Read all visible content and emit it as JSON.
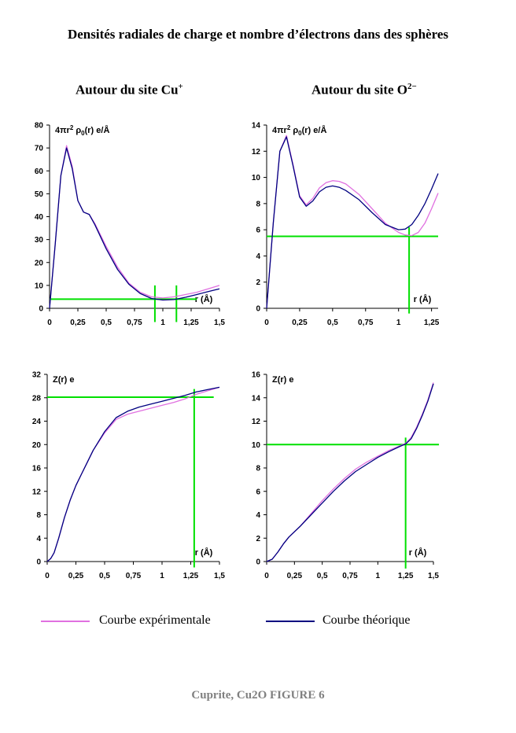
{
  "page": {
    "title": "Densités radiales de charge et nombre d’électrons dans des sphères",
    "subtitle_cu_text": "Autour du site Cu",
    "subtitle_cu_sup": "+",
    "subtitle_o_text": "Autour du site O",
    "subtitle_o_sup": "2−",
    "caption": "Cuprite, Cu2O FIGURE 6"
  },
  "legend": {
    "experimental": "Courbe expérimentale",
    "theoretical": "Courbe théorique"
  },
  "colors": {
    "experimental": "#e070e0",
    "theoretical": "#000080",
    "guide": "#00e000",
    "axis": "#000000"
  },
  "chart_data": [
    {
      "type": "line",
      "ylabel_main": "4πr",
      "ylabel_sup": "2",
      "ylabel_rho": " ρ",
      "ylabel_sub": "0",
      "ylabel_tail": "(r) e/Å",
      "xlabel": "r (Å)",
      "xlim": [
        0,
        1.5
      ],
      "ylim": [
        0,
        80
      ],
      "xticks": [
        0,
        0.25,
        0.5,
        0.75,
        1,
        1.25,
        1.5
      ],
      "xtick_labels": [
        "0",
        "0,25",
        "0,5",
        "0,75",
        "1",
        "1,25",
        "1,5"
      ],
      "yticks": [
        0,
        10,
        20,
        30,
        40,
        50,
        60,
        70,
        80
      ],
      "ytick_labels": [
        "0",
        "10",
        "20",
        "30",
        "40",
        "50",
        "60",
        "70",
        "80"
      ],
      "series": [
        {
          "key": "experimental",
          "x": [
            0,
            0.05,
            0.1,
            0.15,
            0.2,
            0.25,
            0.3,
            0.35,
            0.4,
            0.5,
            0.6,
            0.7,
            0.8,
            0.9,
            1.0,
            1.1,
            1.2,
            1.3,
            1.4,
            1.5
          ],
          "y": [
            0,
            28,
            58,
            71,
            62,
            47,
            42,
            41,
            37,
            27,
            18,
            11,
            7,
            5,
            4.5,
            5,
            6,
            7,
            8.5,
            10
          ]
        },
        {
          "key": "theoretical",
          "x": [
            0,
            0.05,
            0.1,
            0.15,
            0.2,
            0.25,
            0.3,
            0.35,
            0.4,
            0.5,
            0.6,
            0.7,
            0.8,
            0.9,
            1.0,
            1.1,
            1.2,
            1.3,
            1.4,
            1.5
          ],
          "y": [
            0,
            28,
            58,
            70,
            61,
            47,
            42,
            41,
            36.5,
            26,
            17,
            10.5,
            6.5,
            4.3,
            3.6,
            3.8,
            4.8,
            6,
            7.3,
            8.5
          ]
        }
      ],
      "guides": {
        "hline": 4,
        "hline_x": [
          0,
          1.3
        ],
        "vlines": [
          0.93,
          1.12
        ],
        "vline_y": [
          -6,
          10
        ]
      }
    },
    {
      "type": "line",
      "ylabel_main": "4πr",
      "ylabel_sup": "2",
      "ylabel_rho": " ρ",
      "ylabel_sub": "0",
      "ylabel_tail": "(r) e/Å",
      "xlabel": "r (Å)",
      "xlim": [
        0,
        1.3
      ],
      "ylim": [
        0,
        14
      ],
      "xticks": [
        0,
        0.25,
        0.5,
        0.75,
        1,
        1.25
      ],
      "xtick_labels": [
        "0",
        "0,25",
        "0,5",
        "0,75",
        "1",
        "1,25"
      ],
      "yticks": [
        0,
        2,
        4,
        6,
        8,
        10,
        12,
        14
      ],
      "ytick_labels": [
        "0",
        "2",
        "4",
        "6",
        "8",
        "10",
        "12",
        "14"
      ],
      "series": [
        {
          "key": "experimental",
          "x": [
            0,
            0.05,
            0.1,
            0.15,
            0.2,
            0.25,
            0.3,
            0.35,
            0.4,
            0.45,
            0.5,
            0.55,
            0.6,
            0.7,
            0.8,
            0.9,
            1.0,
            1.05,
            1.1,
            1.15,
            1.2,
            1.25,
            1.3
          ],
          "y": [
            0,
            6.5,
            12,
            13.2,
            11,
            8.6,
            7.9,
            8.4,
            9.2,
            9.6,
            9.75,
            9.7,
            9.5,
            8.7,
            7.6,
            6.5,
            5.8,
            5.6,
            5.55,
            5.8,
            6.5,
            7.6,
            8.8
          ]
        },
        {
          "key": "theoretical",
          "x": [
            0,
            0.05,
            0.1,
            0.15,
            0.2,
            0.25,
            0.3,
            0.35,
            0.4,
            0.45,
            0.5,
            0.55,
            0.6,
            0.7,
            0.8,
            0.9,
            1.0,
            1.05,
            1.1,
            1.15,
            1.2,
            1.25,
            1.3
          ],
          "y": [
            0,
            6.5,
            12,
            13.1,
            10.9,
            8.5,
            7.8,
            8.2,
            8.9,
            9.25,
            9.35,
            9.25,
            9.0,
            8.3,
            7.3,
            6.4,
            6.0,
            6.05,
            6.4,
            7.1,
            8.0,
            9.1,
            10.3
          ]
        }
      ],
      "guides": {
        "hline": 5.5,
        "hline_x": [
          0,
          1.3
        ],
        "vlines": [
          1.08
        ],
        "vline_y": [
          -0.4,
          6.2
        ]
      }
    },
    {
      "type": "line",
      "ylabel_main": "Z(r) e",
      "xlabel": "r (Å)",
      "xlim": [
        0,
        1.5
      ],
      "ylim": [
        0,
        32
      ],
      "xticks": [
        0,
        0.25,
        0.5,
        0.75,
        1,
        1.25,
        1.5
      ],
      "xtick_labels": [
        "0",
        "0,25",
        "0,5",
        "0,75",
        "1",
        "1,25",
        "1,5"
      ],
      "yticks": [
        0,
        4,
        8,
        12,
        16,
        20,
        24,
        28,
        32
      ],
      "ytick_labels": [
        "0",
        "4",
        "8",
        "12",
        "16",
        "20",
        "24",
        "28",
        "32"
      ],
      "series": [
        {
          "key": "experimental",
          "x": [
            0,
            0.03,
            0.06,
            0.1,
            0.15,
            0.2,
            0.25,
            0.3,
            0.35,
            0.4,
            0.5,
            0.6,
            0.7,
            0.8,
            0.9,
            1.0,
            1.1,
            1.2,
            1.3,
            1.4,
            1.5
          ],
          "y": [
            0,
            0.5,
            1.5,
            4,
            7.5,
            10.5,
            13,
            15,
            17,
            19,
            22,
            24.3,
            25.2,
            25.7,
            26.2,
            26.7,
            27.2,
            27.8,
            28.6,
            29.2,
            29.8
          ]
        },
        {
          "key": "theoretical",
          "x": [
            0,
            0.03,
            0.06,
            0.1,
            0.15,
            0.2,
            0.25,
            0.3,
            0.35,
            0.4,
            0.5,
            0.6,
            0.7,
            0.8,
            0.9,
            1.0,
            1.1,
            1.2,
            1.3,
            1.4,
            1.5
          ],
          "y": [
            0,
            0.5,
            1.5,
            4,
            7.5,
            10.5,
            13,
            15,
            17,
            19,
            22.2,
            24.6,
            25.7,
            26.4,
            26.9,
            27.4,
            27.9,
            28.4,
            29,
            29.4,
            29.8
          ]
        }
      ],
      "guides": {
        "hline": 28.1,
        "hline_x": [
          0,
          1.45
        ],
        "vlines": [
          1.28
        ],
        "vline_y": [
          -1,
          29.5
        ]
      }
    },
    {
      "type": "line",
      "ylabel_main": "Z(r) e",
      "xlabel": "r (Å)",
      "xlim": [
        0,
        1.5
      ],
      "ylim": [
        0,
        16
      ],
      "xticks": [
        0,
        0.25,
        0.5,
        0.75,
        1,
        1.25,
        1.5
      ],
      "xtick_labels": [
        "0",
        "0,25",
        "0,5",
        "0,75",
        "1",
        "1,25",
        "1,5"
      ],
      "yticks": [
        0,
        2,
        4,
        6,
        8,
        10,
        12,
        14,
        16
      ],
      "ytick_labels": [
        "0",
        "2",
        "4",
        "6",
        "8",
        "10",
        "12",
        "14",
        "16"
      ],
      "series": [
        {
          "key": "experimental",
          "x": [
            0,
            0.05,
            0.1,
            0.15,
            0.2,
            0.3,
            0.4,
            0.5,
            0.6,
            0.7,
            0.8,
            0.9,
            1.0,
            1.1,
            1.2,
            1.25,
            1.3,
            1.35,
            1.4,
            1.45,
            1.5
          ],
          "y": [
            0,
            0.2,
            0.8,
            1.5,
            2.1,
            3.0,
            4.1,
            5.2,
            6.2,
            7.1,
            7.9,
            8.5,
            9.0,
            9.5,
            9.9,
            10.1,
            10.6,
            11.5,
            12.6,
            13.8,
            15.3
          ]
        },
        {
          "key": "theoretical",
          "x": [
            0,
            0.05,
            0.1,
            0.15,
            0.2,
            0.3,
            0.4,
            0.5,
            0.6,
            0.7,
            0.8,
            0.9,
            1.0,
            1.1,
            1.2,
            1.25,
            1.3,
            1.35,
            1.4,
            1.45,
            1.5
          ],
          "y": [
            0,
            0.2,
            0.8,
            1.5,
            2.1,
            3.0,
            4.0,
            5.0,
            6.0,
            6.9,
            7.7,
            8.3,
            8.9,
            9.4,
            9.85,
            10.05,
            10.5,
            11.4,
            12.5,
            13.7,
            15.2
          ]
        }
      ],
      "guides": {
        "hline": 10,
        "hline_x": [
          0,
          1.55
        ],
        "vlines": [
          1.25
        ],
        "vline_y": [
          -0.6,
          10.6
        ]
      }
    }
  ]
}
